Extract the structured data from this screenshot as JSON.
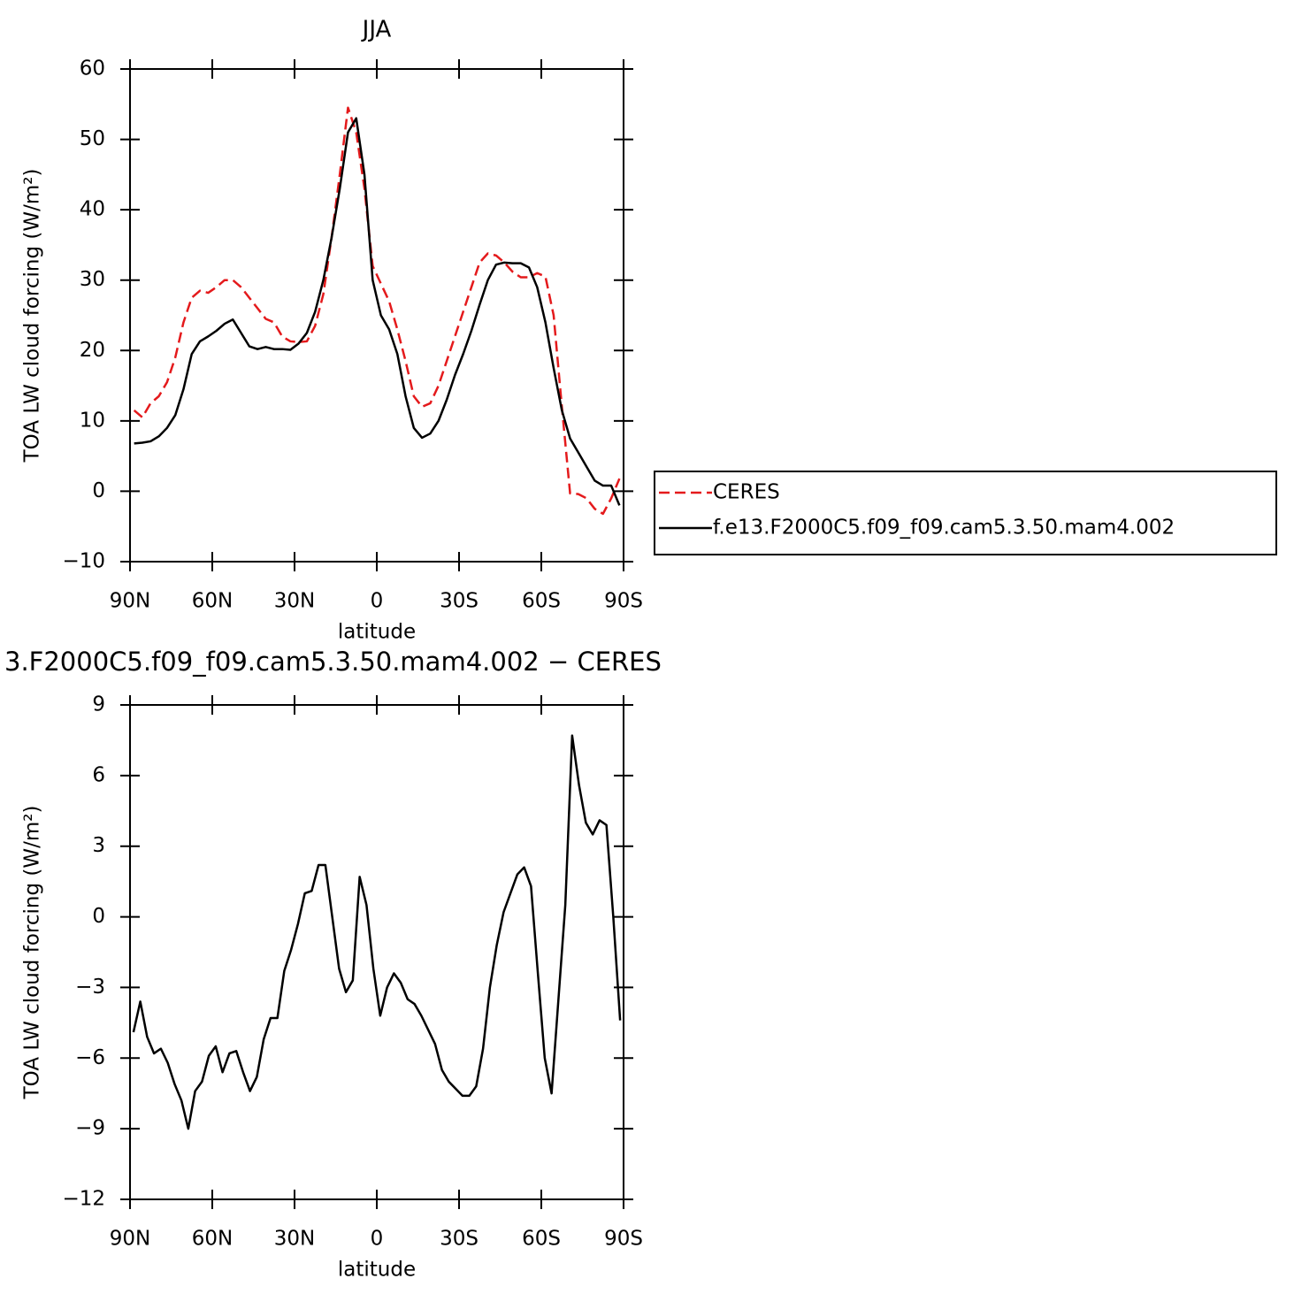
{
  "chart_data": [
    {
      "type": "line",
      "title": "JJA",
      "xlabel": "latitude",
      "ylabel": "TOA LW cloud forcing (W/m²)",
      "x": [
        88.5,
        85.5,
        82.5,
        79.5,
        76.5,
        73.5,
        70.5,
        67.5,
        64.5,
        61.5,
        58.5,
        55.5,
        52.5,
        49.5,
        46.5,
        43.5,
        40.5,
        37.5,
        34.5,
        31.5,
        28.5,
        25.5,
        22.5,
        19.5,
        16.5,
        13.5,
        10.5,
        7.5,
        4.5,
        1.5,
        -1.5,
        -4.5,
        -7.5,
        -10.5,
        -13.5,
        -16.5,
        -19.5,
        -22.5,
        -25.5,
        -28.5,
        -31.5,
        -34.5,
        -37.5,
        -40.5,
        -43.5,
        -46.5,
        -49.5,
        -52.5,
        -55.5,
        -58.5,
        -61.5,
        -64.5,
        -67.5,
        -70.5,
        -73.5,
        -76.5,
        -79.5,
        -82.5,
        -85.5,
        -88.5
      ],
      "series": [
        {
          "name": "CERES",
          "color": "#e41a1c",
          "linestyle": "dashed",
          "values": [
            11.5,
            10.5,
            12.5,
            13.5,
            15.5,
            19,
            24,
            27.5,
            28.5,
            28.2,
            29,
            30,
            30,
            29,
            27.5,
            26,
            24.5,
            24,
            22,
            21.3,
            21.2,
            21.3,
            23.5,
            28,
            36,
            45,
            54.5,
            51,
            43,
            32,
            29.5,
            27,
            23,
            18.5,
            13.5,
            12,
            12.5,
            15,
            18.5,
            22,
            25.5,
            29,
            32.5,
            33.8,
            33.5,
            32.5,
            31.2,
            30.4,
            30.4,
            31,
            30.5,
            25,
            12,
            -0.3,
            -0.4,
            -1,
            -2.5,
            -3.2,
            -1,
            1.8
          ]
        },
        {
          "name": "f.e13.F2000C5.f09_f09.cam5.3.50.mam4.002",
          "color": "#000000",
          "linestyle": "solid",
          "values": [
            6.8,
            6.9,
            7.1,
            7.8,
            9,
            10.8,
            14.5,
            19.5,
            21.3,
            22,
            22.8,
            23.8,
            24.4,
            22.5,
            20.6,
            20.2,
            20.5,
            20.2,
            20.2,
            20.1,
            21,
            22.5,
            25.5,
            30,
            36,
            43,
            51,
            53,
            45,
            30,
            25,
            23,
            19.5,
            13.5,
            9,
            7.6,
            8.2,
            10,
            13,
            16.5,
            19.5,
            22.8,
            26.5,
            30,
            32.2,
            32.5,
            32.4,
            32.4,
            31.8,
            29,
            24,
            17.5,
            11.5,
            7.5,
            5.5,
            3.5,
            1.5,
            0.8,
            0.8,
            -2
          ]
        }
      ],
      "xlim": [
        90,
        -90
      ],
      "xticks": [
        {
          "value": 90,
          "label": "90N"
        },
        {
          "value": 60,
          "label": "60N"
        },
        {
          "value": 30,
          "label": "30N"
        },
        0,
        {
          "value": -30,
          "label": "30S"
        },
        {
          "value": -60,
          "label": "60S"
        },
        {
          "value": -90,
          "label": "90S"
        }
      ],
      "ylim": [
        -10,
        60
      ],
      "yticks": [
        {
          "value": -10,
          "label": "−10"
        },
        0,
        10,
        20,
        30,
        40,
        50,
        60
      ],
      "legend": "right"
    },
    {
      "type": "line",
      "title": "3.F2000C5.f09_f09.cam5.3.50.mam4.002 − CERES",
      "xlabel": "latitude",
      "ylabel": "TOA LW cloud forcing (W/m²)",
      "x": [
        88.75,
        86.25,
        83.75,
        81.25,
        78.75,
        76.25,
        73.75,
        71.25,
        68.75,
        66.25,
        63.75,
        61.25,
        58.75,
        56.25,
        53.75,
        51.25,
        48.75,
        46.25,
        43.75,
        41.25,
        38.75,
        36.25,
        33.75,
        31.25,
        28.75,
        26.25,
        23.75,
        21.25,
        18.75,
        16.25,
        13.75,
        11.25,
        8.75,
        6.25,
        3.75,
        1.25,
        -1.25,
        -3.75,
        -6.25,
        -8.75,
        -11.25,
        -13.75,
        -16.25,
        -18.75,
        -21.25,
        -23.75,
        -26.25,
        -28.75,
        -31.25,
        -33.75,
        -36.25,
        -38.75,
        -41.25,
        -43.75,
        -46.25,
        -48.75,
        -51.25,
        -53.75,
        -56.25,
        -58.75,
        -61.25,
        -63.75,
        -66.25,
        -68.75,
        -71.25,
        -73.75,
        -76.25,
        -78.75,
        -81.25,
        -83.75,
        -86.25,
        -88.75
      ],
      "series": [
        {
          "color": "#000000",
          "linestyle": "solid",
          "values": [
            -4.9,
            -3.6,
            -5.1,
            -5.8,
            -5.6,
            -6.2,
            -7.1,
            -7.8,
            -9,
            -7.4,
            -7,
            -5.9,
            -5.5,
            -6.6,
            -5.8,
            -5.7,
            -6.6,
            -7.4,
            -6.8,
            -5.2,
            -4.3,
            -4.3,
            -2.3,
            -1.4,
            -0.3,
            1,
            1.1,
            2.2,
            2.2,
            0,
            -2.2,
            -3.2,
            -2.7,
            1.7,
            0.5,
            -2.2,
            -4.2,
            -3,
            -2.4,
            -2.8,
            -3.5,
            -3.7,
            -4.2,
            -4.8,
            -5.4,
            -6.5,
            -7,
            -7.3,
            -7.6,
            -7.6,
            -7.2,
            -5.6,
            -3,
            -1.2,
            0.2,
            1,
            1.8,
            2.1,
            1.3,
            -2.4,
            -6,
            -7.5,
            -3.5,
            0.5,
            7.7,
            5.6,
            4,
            3.5,
            4.1,
            3.9,
            0,
            -4.4
          ]
        }
      ],
      "xlim": [
        90,
        -90
      ],
      "xticks": [
        {
          "value": 90,
          "label": "90N"
        },
        {
          "value": 60,
          "label": "60N"
        },
        {
          "value": 30,
          "label": "30N"
        },
        0,
        {
          "value": -30,
          "label": "30S"
        },
        {
          "value": -60,
          "label": "60S"
        },
        {
          "value": -90,
          "label": "90S"
        }
      ],
      "ylim": [
        -12,
        9
      ],
      "yticks": [
        {
          "value": -12,
          "label": "−12"
        },
        {
          "value": -9,
          "label": "−9"
        },
        {
          "value": -6,
          "label": "−6"
        },
        {
          "value": -3,
          "label": "−3"
        },
        0,
        3,
        6,
        9
      ]
    }
  ]
}
